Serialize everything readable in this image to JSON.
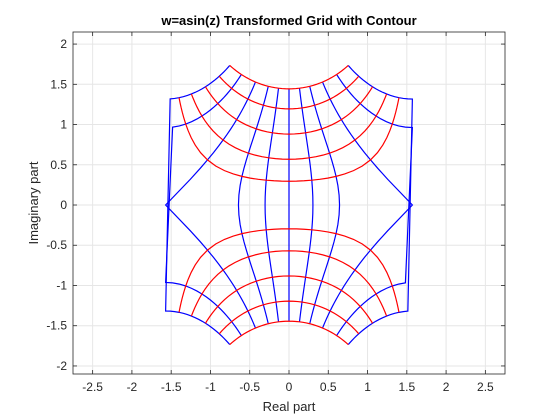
{
  "chart_data": {
    "type": "line",
    "title": "w=asin(z) Transformed Grid with Contour",
    "xlabel": "Real part",
    "ylabel": "Imaginary part",
    "xlim": [
      -2.75,
      2.75
    ],
    "ylim": [
      -2.1,
      2.15
    ],
    "xticks": [
      -2.5,
      -2,
      -1.5,
      -1,
      -0.5,
      0,
      0.5,
      1,
      1.5,
      2,
      2.5
    ],
    "yticks": [
      -2,
      -1.5,
      -1,
      -0.5,
      0,
      0.5,
      1,
      1.5,
      2
    ],
    "xtick_labels": [
      "-2.5",
      "-2",
      "-1.5",
      "-1",
      "-0.5",
      "0",
      "0.5",
      "1",
      "1.5",
      "2",
      "2.5"
    ],
    "ytick_labels": [
      "-2",
      "-1.5",
      "-1",
      "-0.5",
      "0",
      "0.5",
      "1",
      "1.5",
      "2"
    ],
    "grid": true,
    "mapping": "w = asin(z)",
    "series": [
      {
        "color": "#ff0000",
        "family": "images of horizontal grid lines Im(z) = const",
        "param_range": [
          -2,
          2
        ],
        "values": [
          -2,
          -1.5,
          -1,
          -0.6,
          -0.3,
          0.3,
          0.6,
          1,
          1.5,
          2
        ],
        "vertical_extent": [
          -1.95,
          1.95
        ]
      },
      {
        "color": "#0000ff",
        "family": "images of vertical grid lines Re(z) = const",
        "param_range": [
          -2,
          2
        ],
        "values": [
          -2,
          -1.5,
          -1,
          -0.6,
          -0.3,
          0,
          0.3,
          0.6,
          1,
          1.5,
          2
        ],
        "vertical_extent": [
          -1.95,
          1.95
        ]
      }
    ]
  }
}
